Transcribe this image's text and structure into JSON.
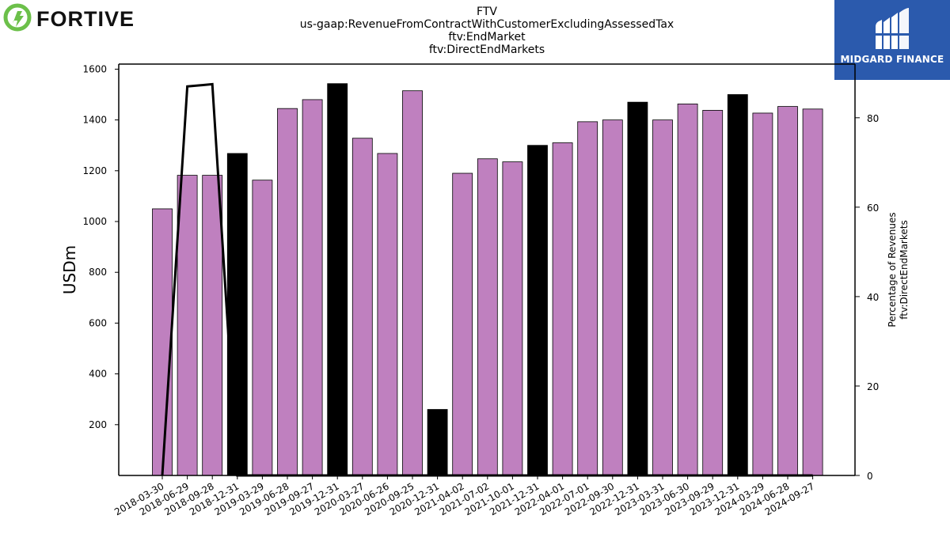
{
  "logos": {
    "left_brand": "FORTIVE",
    "right_brand": "MIDGARD FINANCE"
  },
  "colors": {
    "bar_default": "#bf80bf",
    "bar_highlight": "#000000",
    "line": "#000000",
    "fortive_green": "#6cc04a",
    "midgard_blue": "#2b5aad"
  },
  "chart_data": {
    "type": "bar",
    "title_lines": [
      "FTV",
      "us-gaap:RevenueFromContractWithCustomerExcludingAssessedTax",
      "ftv:EndMarket",
      "ftv:DirectEndMarkets"
    ],
    "ylabel": "USDm",
    "y2label_lines": [
      "Percentage of Revenues",
      "ftv:DirectEndMarkets"
    ],
    "ylim": [
      0,
      1620
    ],
    "y2lim": [
      0,
      92
    ],
    "yticks": [
      200,
      400,
      600,
      800,
      1000,
      1200,
      1400,
      1600
    ],
    "y2ticks": [
      0,
      20,
      40,
      60,
      80
    ],
    "categories": [
      "2018-03-30",
      "2018-06-29",
      "2018-09-28",
      "2018-12-31",
      "2019-03-29",
      "2019-06-28",
      "2019-09-27",
      "2019-12-31",
      "2020-03-27",
      "2020-06-26",
      "2020-09-25",
      "2020-12-31",
      "2021-04-02",
      "2021-07-02",
      "2021-10-01",
      "2021-12-31",
      "2022-04-01",
      "2022-07-01",
      "2022-09-30",
      "2022-12-31",
      "2023-03-31",
      "2023-06-30",
      "2023-09-29",
      "2023-12-31",
      "2024-03-29",
      "2024-06-28",
      "2024-09-27"
    ],
    "values": [
      1050,
      1182,
      1182,
      1268,
      1163,
      1445,
      1480,
      1543,
      1328,
      1268,
      1515,
      260,
      1190,
      1247,
      1235,
      1300,
      1310,
      1393,
      1400,
      1470,
      1400,
      1463,
      1438,
      1500,
      1427,
      1453,
      1443
    ],
    "highlight": [
      false,
      false,
      false,
      true,
      false,
      false,
      false,
      true,
      false,
      false,
      false,
      true,
      false,
      false,
      false,
      true,
      false,
      false,
      false,
      true,
      false,
      false,
      false,
      true,
      false,
      false,
      false
    ],
    "line_series": {
      "values": [
        0,
        87,
        87.5,
        0,
        0,
        0,
        0,
        0,
        0,
        0,
        0,
        0,
        0,
        0,
        0,
        0,
        0,
        0,
        0,
        0,
        0,
        0,
        0,
        0,
        0,
        0,
        0
      ]
    }
  }
}
